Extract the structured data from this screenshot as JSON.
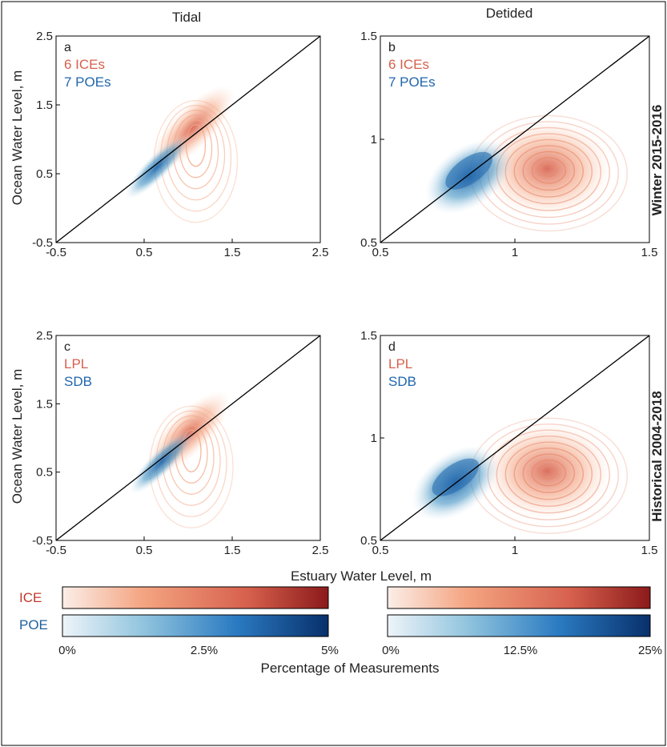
{
  "figure": {
    "col_titles": [
      "Tidal",
      "Detided"
    ],
    "row_labels": [
      "Winter 2015-2016",
      "Historical 2004-2018"
    ],
    "ylabel": "Ocean Water Level, m",
    "xlabel": "Estuary Water Level, m",
    "colorbar_title": "Percentage of Measurements",
    "colors": {
      "ice": "#d6604d",
      "poe": "#2166ac",
      "frame": "#000000"
    }
  },
  "chart_data": [
    {
      "type": "contour",
      "panel": "a",
      "legend": [
        "6 ICEs",
        "7 POEs"
      ],
      "xlim": [
        -0.5,
        2.5
      ],
      "ylim": [
        -0.5,
        2.5
      ],
      "xticks": [
        "-0.5",
        "0.5",
        "1.5",
        "2.5"
      ],
      "yticks": [
        "-0.5",
        "0.5",
        "1.5",
        "2.5"
      ],
      "reference_line": "1:1",
      "ice_center": [
        1.05,
        1.05
      ],
      "poe_center": [
        0.65,
        0.6
      ]
    },
    {
      "type": "contour",
      "panel": "b",
      "legend": [
        "6 ICEs",
        "7 POEs"
      ],
      "xlim": [
        0.5,
        1.5
      ],
      "ylim": [
        0.5,
        1.5
      ],
      "xticks": [
        "0.5",
        "1",
        "1.5"
      ],
      "yticks": [
        "0.5",
        "1",
        "1.5"
      ],
      "reference_line": "1:1",
      "ice_center": [
        1.12,
        0.82
      ],
      "poe_center": [
        0.83,
        0.82
      ]
    },
    {
      "type": "contour",
      "panel": "c",
      "legend": [
        "LPL",
        "SDB"
      ],
      "xlim": [
        -0.5,
        2.5
      ],
      "ylim": [
        -0.5,
        2.5
      ],
      "xticks": [
        "-0.5",
        "0.5",
        "1.5",
        "2.5"
      ],
      "yticks": [
        "-0.5",
        "0.5",
        "1.5",
        "2.5"
      ],
      "reference_line": "1:1",
      "ice_center": [
        1.0,
        0.95
      ],
      "poe_center": [
        0.7,
        0.65
      ]
    },
    {
      "type": "contour",
      "panel": "d",
      "legend": [
        "LPL",
        "SDB"
      ],
      "xlim": [
        0.5,
        1.5
      ],
      "ylim": [
        0.5,
        1.5
      ],
      "xticks": [
        "0.5",
        "1",
        "1.5"
      ],
      "yticks": [
        "0.5",
        "1",
        "1.5"
      ],
      "reference_line": "1:1",
      "ice_center": [
        1.12,
        0.8
      ],
      "poe_center": [
        0.78,
        0.78
      ]
    }
  ],
  "colorbars": [
    {
      "rows": [
        "ICE",
        "POE"
      ],
      "ticks": [
        "0%",
        "2.5%",
        "5%"
      ],
      "range": [
        0,
        5
      ]
    },
    {
      "rows": [
        "ICE",
        "POE"
      ],
      "ticks": [
        "0%",
        "12.5%",
        "25%"
      ],
      "range": [
        0,
        25
      ]
    }
  ]
}
